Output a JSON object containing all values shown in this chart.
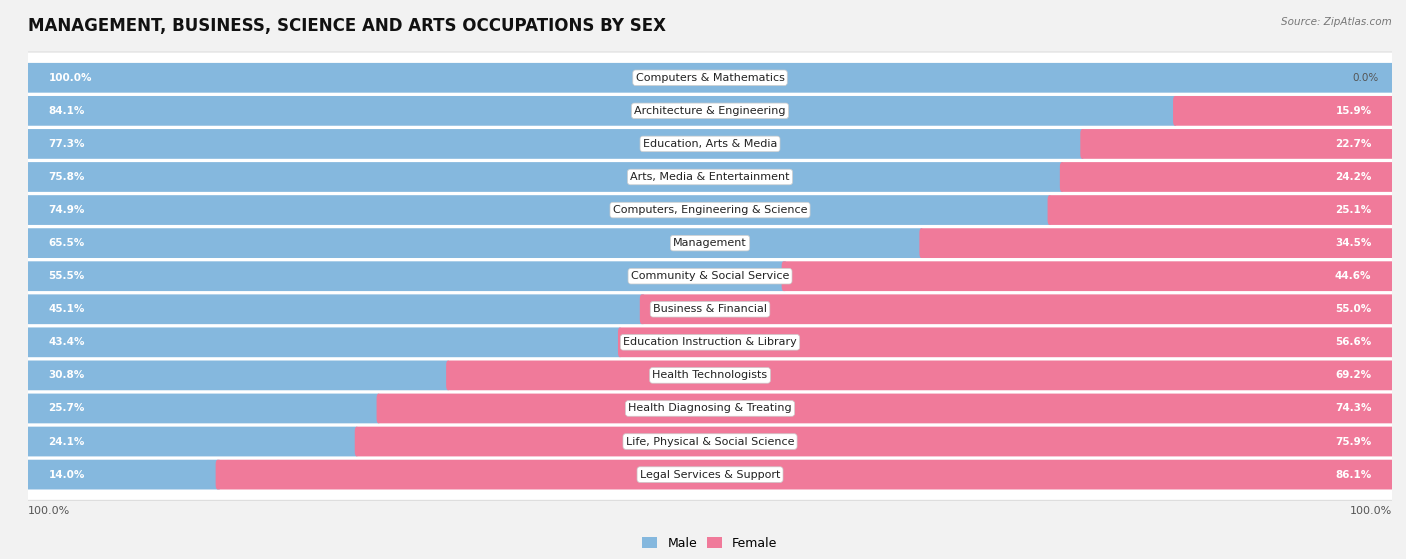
{
  "title": "MANAGEMENT, BUSINESS, SCIENCE AND ARTS OCCUPATIONS BY SEX",
  "source": "Source: ZipAtlas.com",
  "categories": [
    "Computers & Mathematics",
    "Architecture & Engineering",
    "Education, Arts & Media",
    "Arts, Media & Entertainment",
    "Computers, Engineering & Science",
    "Management",
    "Community & Social Service",
    "Business & Financial",
    "Education Instruction & Library",
    "Health Technologists",
    "Health Diagnosing & Treating",
    "Life, Physical & Social Science",
    "Legal Services & Support"
  ],
  "male_pct": [
    100.0,
    84.1,
    77.3,
    75.8,
    74.9,
    65.5,
    55.5,
    45.1,
    43.4,
    30.8,
    25.7,
    24.1,
    14.0
  ],
  "female_pct": [
    0.0,
    15.9,
    22.7,
    24.2,
    25.1,
    34.5,
    44.6,
    55.0,
    56.6,
    69.2,
    74.3,
    75.9,
    86.1
  ],
  "male_color": "#85b8de",
  "female_color": "#f07a9a",
  "male_label": "Male",
  "female_label": "Female",
  "bg_color": "#f2f2f2",
  "bar_bg_color": "#ffffff",
  "title_fontsize": 12,
  "label_fontsize": 8.0,
  "annotation_fontsize": 7.5,
  "legend_fontsize": 9
}
